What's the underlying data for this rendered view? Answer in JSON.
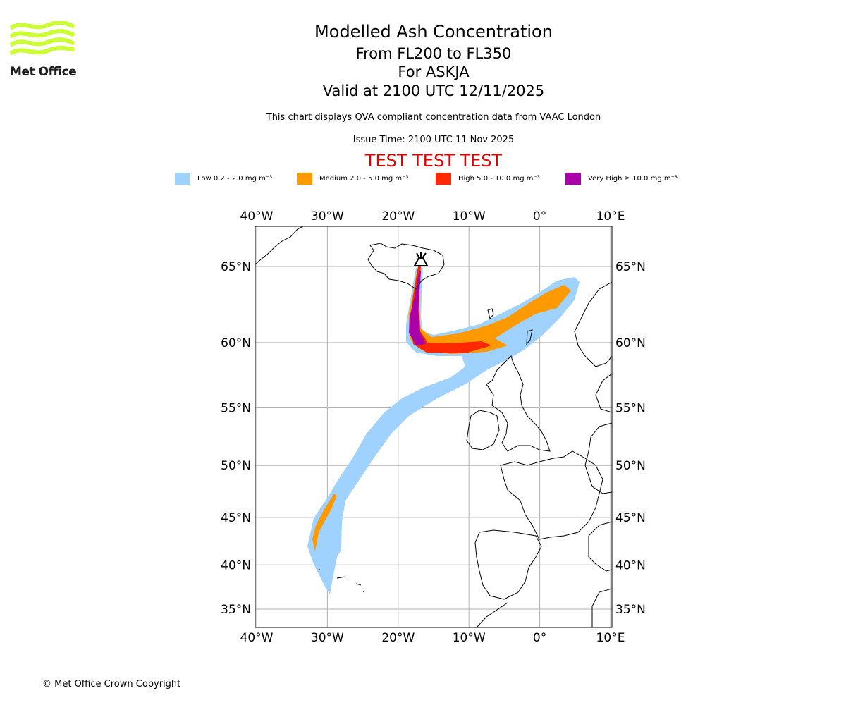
{
  "header": {
    "title": "Modelled Ash Concentration",
    "levels": "From FL200 to FL350",
    "volcano": "For ASKJA",
    "valid": "Valid at 2100 UTC 12/11/2025",
    "note": "This chart displays QVA compliant concentration data from VAAC London",
    "issue": "Issue Time: 2100 UTC 11 Nov 2025",
    "test": "TEST TEST TEST"
  },
  "logo": {
    "text": "Met Office",
    "color": "#ccff33"
  },
  "legend": [
    {
      "label": "Low 0.2 - 2.0 mg m⁻³",
      "color": "#a0d2ff"
    },
    {
      "label": "Medium 2.0 - 5.0 mg m⁻³",
      "color": "#ff9900"
    },
    {
      "label": "High 5.0 - 10.0 mg m⁻³",
      "color": "#ff2800"
    },
    {
      "label": "Very High ≥ 10.0 mg m⁻³",
      "color": "#aa00aa"
    }
  ],
  "chart_data": {
    "type": "map",
    "projection": "mercator",
    "lon_range": [
      -40,
      10
    ],
    "lat_range": [
      33.5,
      68
    ],
    "lon_ticks": [
      {
        "v": -40,
        "label": "40°W"
      },
      {
        "v": -30,
        "label": "30°W"
      },
      {
        "v": -20,
        "label": "20°W"
      },
      {
        "v": -10,
        "label": "10°W"
      },
      {
        "v": 0,
        "label": "0°"
      },
      {
        "v": 10,
        "label": "10°E"
      }
    ],
    "lat_ticks": [
      {
        "v": 65,
        "label": "65°N"
      },
      {
        "v": 60,
        "label": "60°N"
      },
      {
        "v": 55,
        "label": "55°N"
      },
      {
        "v": 50,
        "label": "50°N"
      },
      {
        "v": 45,
        "label": "45°N"
      },
      {
        "v": 40,
        "label": "40°N"
      },
      {
        "v": 35,
        "label": "35°N"
      }
    ],
    "grid": true,
    "volcano": {
      "name": "ASKJA",
      "lon": -16.75,
      "lat": 65.05
    }
  },
  "footer": {
    "copyright": "© Met Office Crown Copyright"
  }
}
